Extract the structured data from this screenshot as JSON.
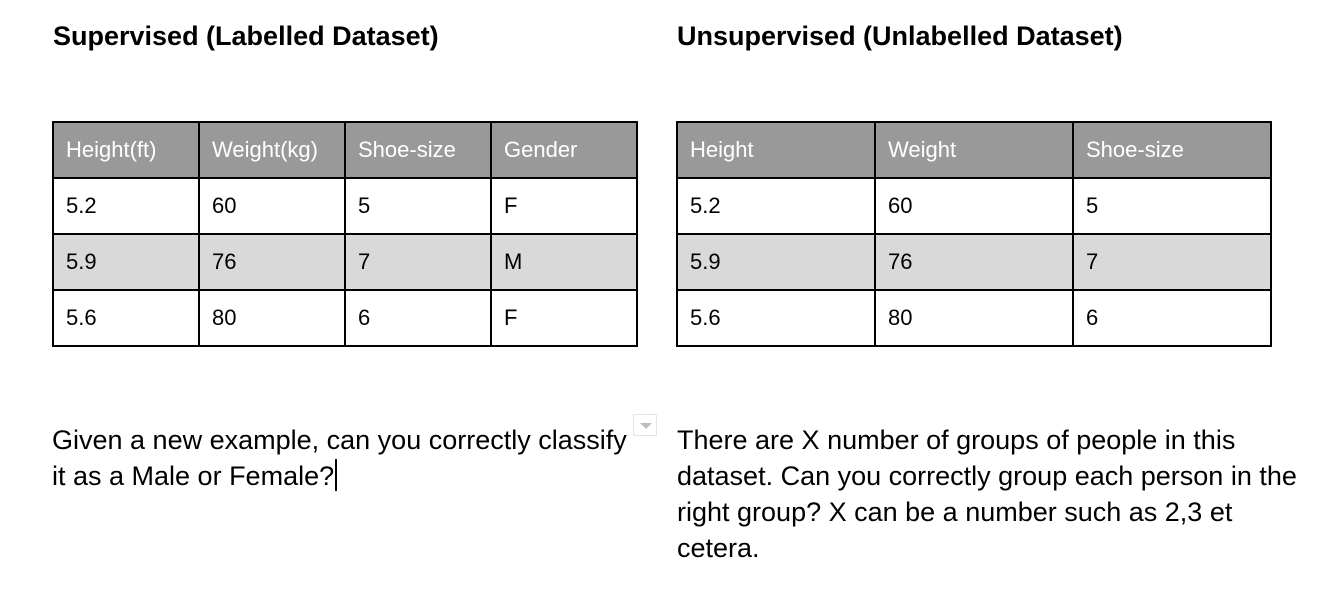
{
  "supervised": {
    "title": "Supervised (Labelled Dataset)",
    "table": {
      "headers": [
        "Height(ft)",
        "Weight(kg)",
        "Shoe-size",
        "Gender"
      ],
      "rows": [
        [
          "5.2",
          "60",
          "5",
          "F"
        ],
        [
          "5.9",
          "76",
          "7",
          "M"
        ],
        [
          "5.6",
          "80",
          "6",
          "F"
        ]
      ]
    },
    "question": " Given a new example, can you correctly classify it as a Male or Female?"
  },
  "unsupervised": {
    "title": "Unsupervised (Unlabelled Dataset)",
    "table": {
      "headers": [
        "Height",
        "Weight",
        "Shoe-size"
      ],
      "rows": [
        [
          "5.2",
          "60",
          "5"
        ],
        [
          "5.9",
          "76",
          "7"
        ],
        [
          "5.6",
          "80",
          "6"
        ]
      ]
    },
    "question": "There are X number of groups of people in this dataset. Can you correctly group each person in the right group? X can be a number such as 2,3 et cetera."
  },
  "icons": {
    "dropdown": "chevron-down-icon"
  },
  "colors": {
    "header_bg": "#999999",
    "header_text": "#ffffff",
    "striped_row_bg": "#d9d9d9",
    "border": "#000000"
  }
}
